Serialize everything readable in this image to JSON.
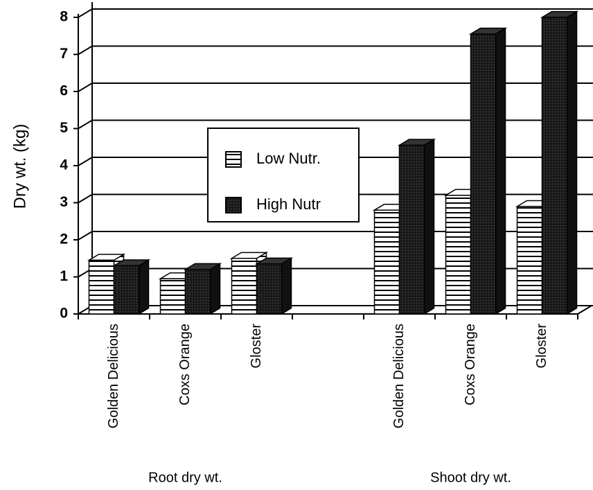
{
  "chart_data": {
    "type": "bar3d",
    "y_label": "Dry wt. (kg)",
    "categories": [
      "Golden Delicious",
      "Coxs Orange",
      "Gloster",
      null,
      "Golden Delicious",
      "Coxs Orange",
      "Gloster"
    ],
    "group_labels": [
      "Root dry wt.",
      "Shoot dry wt."
    ],
    "series": [
      {
        "name": "Low Nutr.",
        "color": "#ffffff",
        "values": [
          1.45,
          0.95,
          1.5,
          null,
          2.8,
          3.2,
          2.9
        ]
      },
      {
        "name": "High Nutr",
        "color": "#222222",
        "values": [
          1.3,
          1.2,
          1.35,
          null,
          4.55,
          7.55,
          8.0
        ]
      }
    ],
    "ylim": [
      0,
      8
    ],
    "yticks": [
      0,
      1,
      2,
      3,
      4,
      5,
      6,
      7,
      8
    ],
    "grid": true,
    "legend": "center"
  }
}
